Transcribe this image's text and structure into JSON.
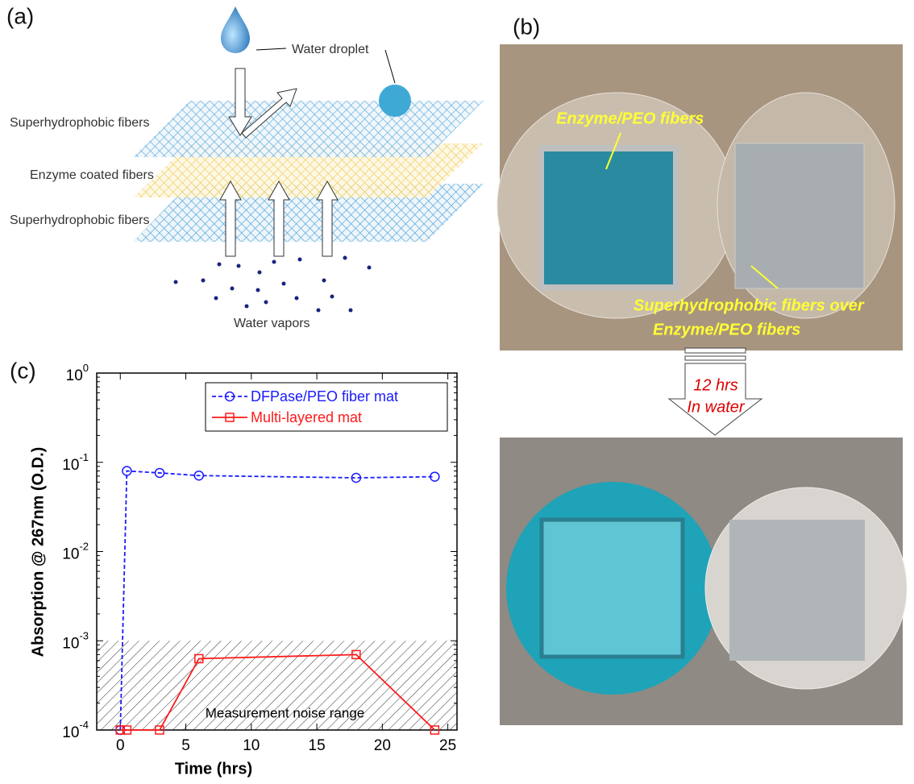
{
  "panel_a": {
    "label": "(a)",
    "water_droplet": "Water droplet",
    "layers": [
      "Superhydrophobic fibers",
      "Enzyme coated fibers",
      "Superhydrophobic fibers"
    ],
    "water_vapors": "Water vapors"
  },
  "panel_b": {
    "label": "(b)",
    "enzyme_label": "Enzyme/PEO fibers",
    "overlay_label": [
      "Superhydrophobic fibers over",
      "Enzyme/PEO fibers"
    ],
    "arrow_label": [
      "12 hrs",
      "In water"
    ]
  },
  "chart_data": {
    "type": "line",
    "panel_label": "(c)",
    "xlabel": "Time (hrs)",
    "ylabel": "Absorption @ 267nm (O.D.)",
    "log_y": true,
    "legend": "top-right",
    "x": [
      0,
      0.5,
      3,
      6,
      18,
      24
    ],
    "series": [
      {
        "name": "DFPase/PEO fiber mat",
        "color": "#1a1aff",
        "dash": true,
        "marker": "circle",
        "values": [
          0.0001,
          0.08,
          0.076,
          0.071,
          0.067,
          0.069
        ]
      },
      {
        "name": "Multi-layered mat",
        "color": "#ff1a1a",
        "dash": false,
        "marker": "square",
        "values": [
          0.0001,
          0.0001,
          0.0001,
          0.00063,
          0.0007,
          0.0001
        ]
      }
    ],
    "noise_band": [
      0.0001,
      0.001
    ],
    "noise_label": "Measurement noise range",
    "xlim": [
      -1.8,
      25.7
    ],
    "xticks": [
      0,
      5,
      10,
      15,
      20,
      25
    ],
    "ylim": [
      0.0001,
      1
    ],
    "yticks": [
      {
        "value": 0.0001,
        "label": "10",
        "exponent": "-4"
      },
      {
        "value": 0.001,
        "label": "10",
        "exponent": "-3"
      },
      {
        "value": 0.01,
        "label": "10",
        "exponent": "-2"
      },
      {
        "value": 0.1,
        "label": "10",
        "exponent": "-1"
      },
      {
        "value": 1,
        "label": "10",
        "exponent": "0"
      }
    ]
  }
}
